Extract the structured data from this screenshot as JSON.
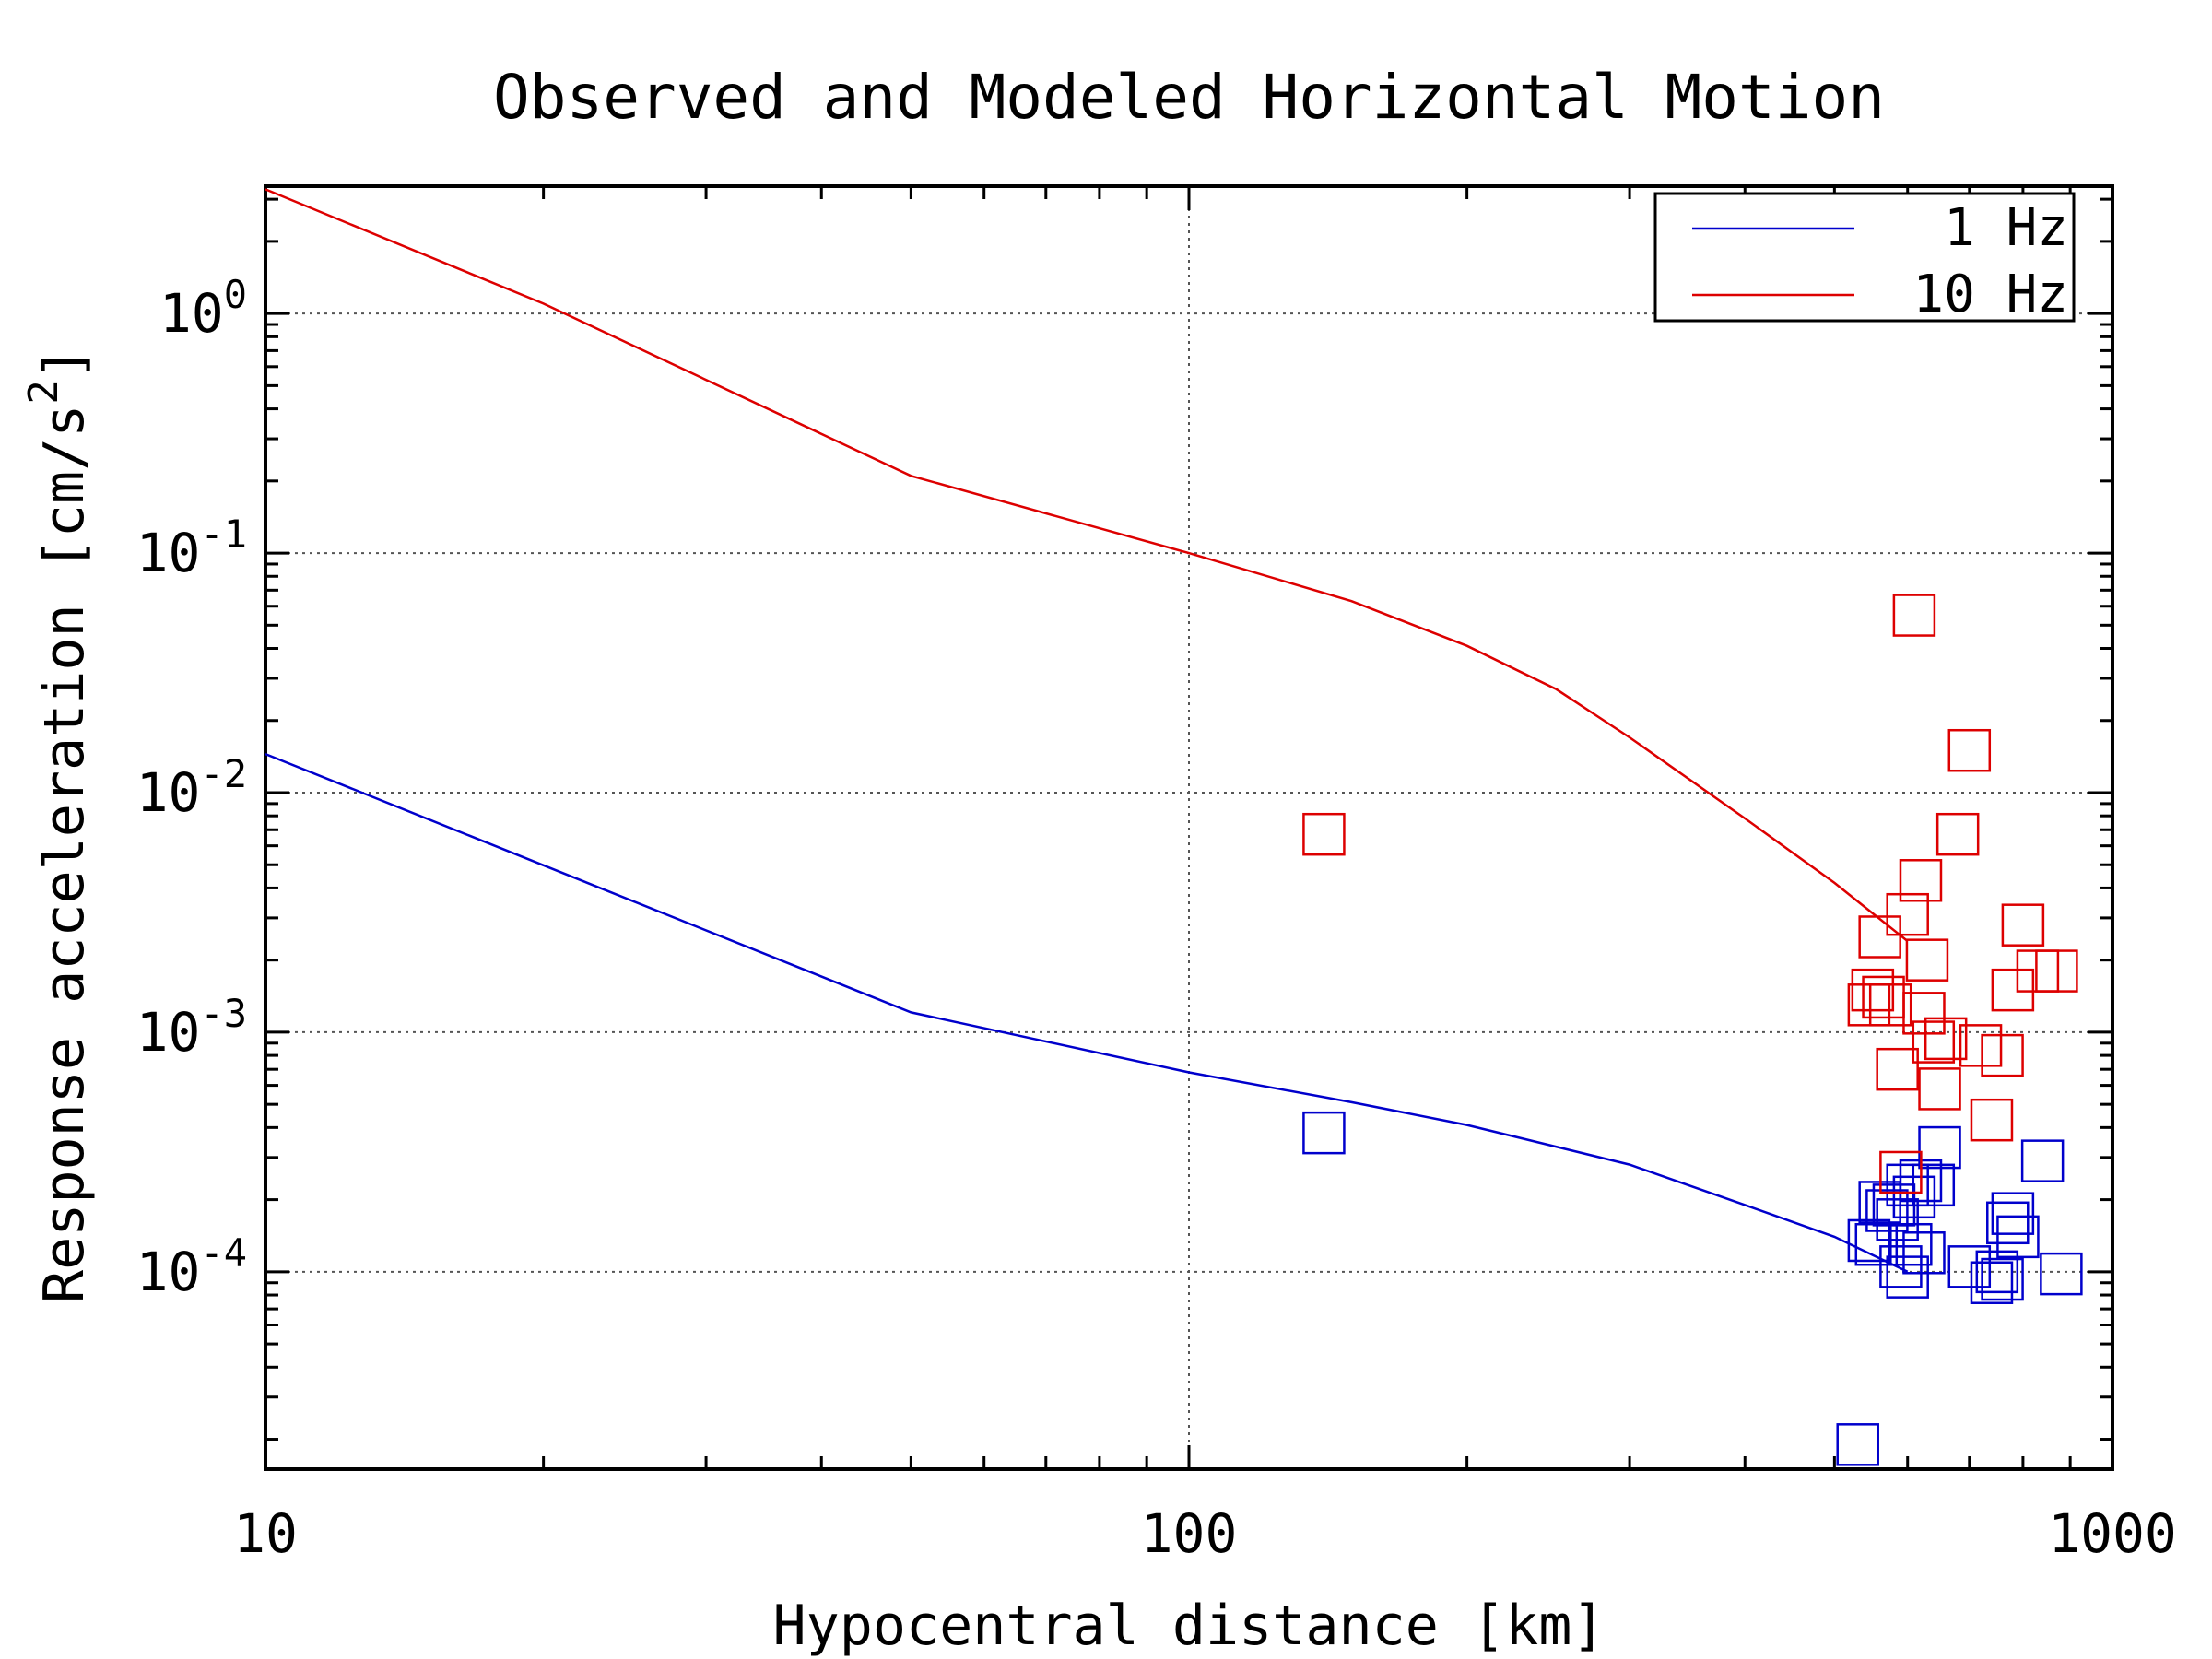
{
  "chart_data": {
    "type": "scatter",
    "title": "Observed and Modeled Horizontal Motion",
    "xlabel": "Hypocentral distance [km]",
    "ylabel": "Response acceleration [cm/s²]",
    "xscale": "log",
    "yscale": "log",
    "xlim": [
      10,
      1000
    ],
    "ylim": [
      1.5e-05,
      3.4
    ],
    "grid": true,
    "legend_position": "top-right",
    "x_ticks": [
      {
        "value": 10,
        "label": "10"
      },
      {
        "value": 100,
        "label": "100"
      },
      {
        "value": 1000,
        "label": "1000"
      }
    ],
    "y_ticks": [
      {
        "value": 1,
        "base": "10",
        "exp": "0"
      },
      {
        "value": 0.1,
        "base": "10",
        "exp": "-1"
      },
      {
        "value": 0.01,
        "base": "10",
        "exp": "-2"
      },
      {
        "value": 0.001,
        "base": "10",
        "exp": "-3"
      },
      {
        "value": 0.0001,
        "base": "10",
        "exp": "-4"
      }
    ],
    "series": [
      {
        "name": "1 Hz",
        "color": "#0000cc",
        "model_line": {
          "x": [
            10,
            50,
            100,
            150,
            200,
            300,
            400,
            500,
            600
          ],
          "y": [
            0.0145,
            0.00121,
            0.00068,
            0.00051,
            0.00041,
            0.00028,
            0.00019,
            0.00014,
            0.0001
          ]
        },
        "observed": {
          "x": [
            140,
            560,
            570,
            545,
            555,
            580,
            600,
            620,
            610,
            640,
            605,
            625,
            590,
            585,
            650,
            700,
            760,
            780,
            770,
            790,
            840,
            750,
            740,
            880,
            530,
            600
          ],
          "y": [
            0.00038,
            0.000195,
            0.00018,
            0.000135,
            0.00013,
            0.00019,
            0.00023,
            0.00024,
            0.000205,
            0.00023,
            0.00013,
            0.00012,
            0.000105,
            0.000165,
            0.00033,
            0.000105,
            9.3e-05,
            0.000175,
            0.00016,
            0.00014,
            0.00029,
            0.0001,
            9e-05,
            9.8e-05,
            1.9e-05,
            9.5e-05
          ]
        }
      },
      {
        "name": "10 Hz",
        "color": "#dd0000",
        "model_line": {
          "x": [
            10,
            20,
            50,
            100,
            150,
            200,
            250,
            300,
            400,
            500,
            600
          ],
          "y": [
            3.3,
            1.1,
            0.21,
            0.1,
            0.063,
            0.041,
            0.027,
            0.017,
            0.0078,
            0.0042,
            0.0024
          ]
        },
        "observed": {
          "x": [
            140,
            610,
            700,
            680,
            620,
            600,
            560,
            630,
            625,
            550,
            545,
            565,
            575,
            585,
            640,
            660,
            720,
            760,
            780,
            800,
            830,
            870,
            740,
            650,
            590
          ],
          "y": [
            0.0067,
            0.055,
            0.015,
            0.0067,
            0.0043,
            0.0031,
            0.0025,
            0.002,
            0.0012,
            0.0015,
            0.0013,
            0.0014,
            0.0013,
            0.0007,
            0.00091,
            0.00094,
            0.00088,
            0.0008,
            0.0015,
            0.0028,
            0.0018,
            0.0018,
            0.00043,
            0.00058,
            0.00026
          ]
        }
      }
    ]
  }
}
